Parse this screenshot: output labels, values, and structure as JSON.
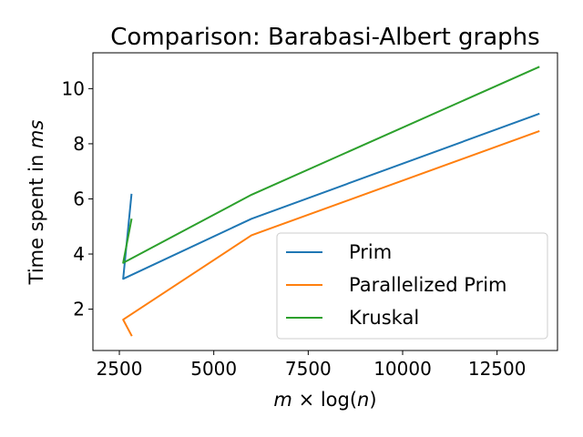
{
  "chart_data": {
    "type": "line",
    "title": "Comparison: Barabasi-Albert graphs",
    "xlabel_parts": [
      "m",
      " × log(",
      "n",
      ")"
    ],
    "ylabel_parts": [
      "Time spent in ",
      "ms"
    ],
    "xlim": [
      1800,
      14100
    ],
    "ylim": [
      0.5,
      11.3
    ],
    "xticks": [
      2500,
      5000,
      7500,
      10000,
      12500
    ],
    "xtick_labels": [
      "2500",
      "5000",
      "7500",
      "10000",
      "12500"
    ],
    "yticks": [
      2,
      4,
      6,
      8,
      10
    ],
    "ytick_labels": [
      "2",
      "4",
      "6",
      "8",
      "10"
    ],
    "grid": false,
    "legend_position": "lower-right",
    "series": [
      {
        "name": "Prim",
        "color": "#1f77b4",
        "x": [
          2820,
          2600,
          6000,
          13600
        ],
        "y": [
          6.15,
          3.1,
          5.28,
          9.08
        ]
      },
      {
        "name": "Parallelized Prim",
        "color": "#ff7f0e",
        "x": [
          2820,
          2600,
          6000,
          13600
        ],
        "y": [
          1.05,
          1.62,
          4.68,
          8.45
        ]
      },
      {
        "name": "Kruskal",
        "color": "#2ca02c",
        "x": [
          2820,
          2600,
          6000,
          13600
        ],
        "y": [
          5.25,
          3.68,
          6.15,
          10.78
        ]
      }
    ]
  }
}
